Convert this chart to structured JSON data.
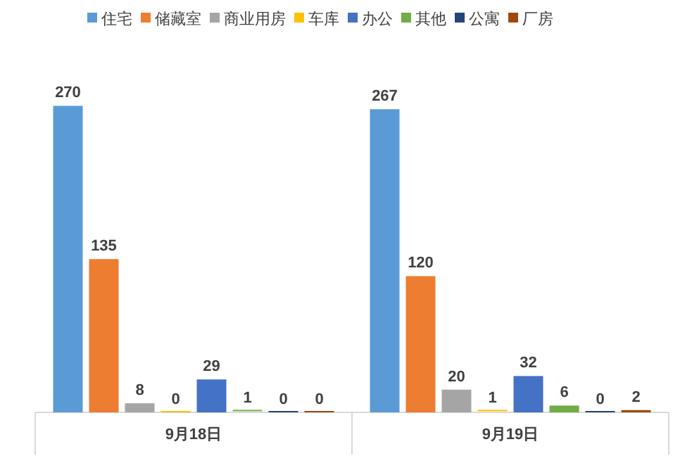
{
  "chart_data": {
    "type": "bar",
    "categories": [
      "9月18日",
      "9月19日"
    ],
    "series": [
      {
        "name": "住宅",
        "color": "#5b9bd5",
        "values": [
          270,
          267
        ]
      },
      {
        "name": "储藏室",
        "color": "#ed7d31",
        "values": [
          135,
          120
        ]
      },
      {
        "name": "商业用房",
        "color": "#a5a5a5",
        "values": [
          8,
          20
        ]
      },
      {
        "name": "车库",
        "color": "#ffc000",
        "values": [
          0,
          1
        ]
      },
      {
        "name": "办公",
        "color": "#4472c4",
        "values": [
          29,
          32
        ]
      },
      {
        "name": "其他",
        "color": "#70ad47",
        "values": [
          1,
          6
        ]
      },
      {
        "name": "公寓",
        "color": "#264478",
        "values": [
          0,
          0
        ]
      },
      {
        "name": "厂房",
        "color": "#9e480e",
        "values": [
          0,
          2
        ]
      }
    ],
    "data_labels": true,
    "legend": "top",
    "tick_labels": "x"
  }
}
